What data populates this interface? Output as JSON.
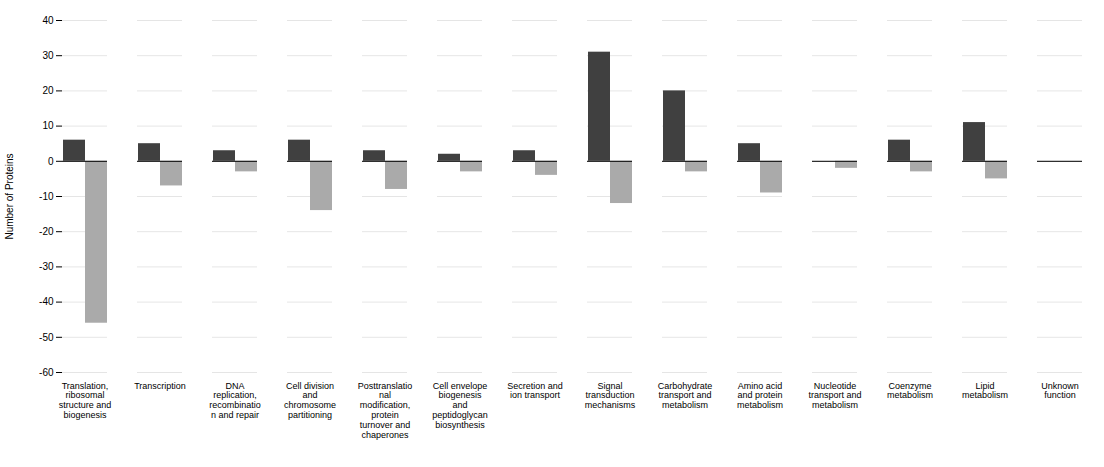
{
  "chart_data": {
    "type": "bar",
    "categories": [
      "Translation,\nribosomal\nstructure and\nbiogenesis",
      "Transcription",
      "DNA\nreplication,\nrecombinatio\nn and repair",
      "Cell division\nand\nchromosome\npartitioning",
      "Posttranslatio\nnal\nmodification,\nprotein\nturnover and\nchaperones",
      "Cell envelope\nbiogenesis\nand\npeptidoglycan\nbiosynthesis",
      "Secretion and\nion transport",
      "Signal\ntransduction\nmechanisms",
      "Carbohydrate\ntransport and\nmetabolism",
      "Amino acid\nand protein\nmetabolism",
      "Nucleotide\ntransport and\nmetabolism",
      "Coenzyme\nmetabolism",
      "Lipid\nmetabolism",
      "Unknown\nfunction"
    ],
    "series": [
      {
        "color": "#404040",
        "values": [
          6,
          5,
          3,
          6,
          3,
          2,
          3,
          31,
          20,
          5,
          0,
          6,
          11,
          0
        ]
      },
      {
        "color": "#aaaaaa",
        "values": [
          -46,
          -7,
          -3,
          -14,
          -8,
          -3,
          -4,
          -12,
          -3,
          -9,
          -2,
          -3,
          -5,
          0
        ]
      }
    ],
    "ylabel": "Number of Proteins",
    "ylim": [
      -60,
      40
    ],
    "yticks": [
      -60,
      -50,
      -40,
      -30,
      -20,
      -10,
      0,
      10,
      20,
      30,
      40
    ],
    "grid": true
  }
}
